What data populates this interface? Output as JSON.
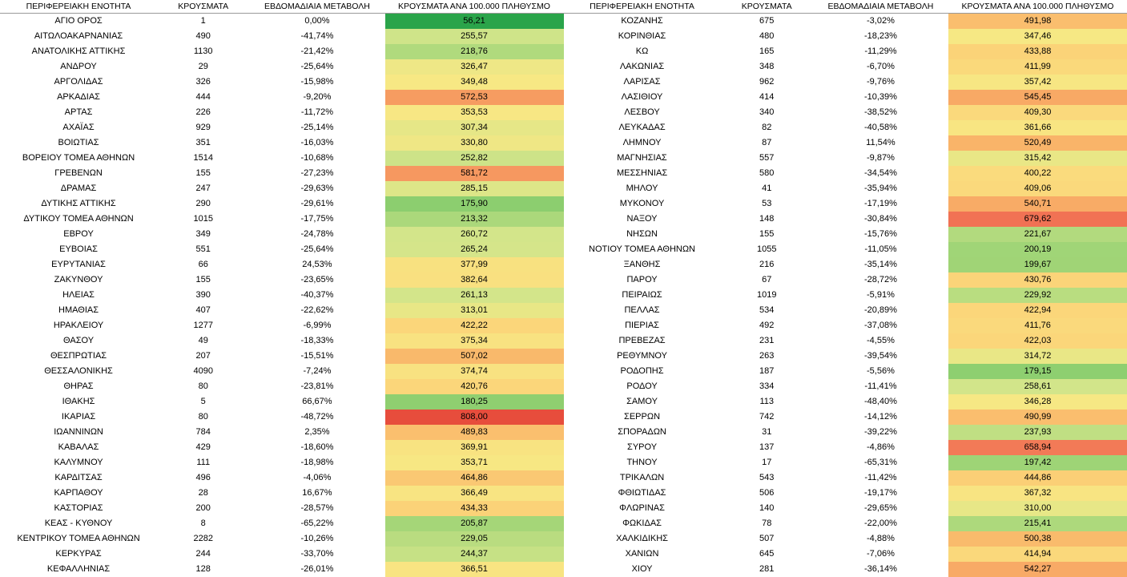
{
  "headers": {
    "region": "ΠΕΡΙΦΕΡΕΙΑΚΗ ΕΝΟΤΗΤΑ",
    "cases": "ΚΡΟΥΣΜΑΤΑ",
    "weekly_change": "ΕΒΔΟΜΑΔΙΑΙΑ ΜΕΤΑΒΟΛΗ",
    "per_100k": "ΚΡΟΥΣΜΑΤΑ ΑΝΑ 100.000 ΠΛΗΘΥΣΜΟ"
  },
  "color_scale": {
    "min": 56.21,
    "max": 808.0,
    "stops": [
      {
        "v": 56,
        "c": "#2aa44a"
      },
      {
        "v": 180,
        "c": "#8fcf70"
      },
      {
        "v": 260,
        "c": "#d3e58a"
      },
      {
        "v": 350,
        "c": "#f7e884"
      },
      {
        "v": 430,
        "c": "#fbd479"
      },
      {
        "v": 520,
        "c": "#f9b469"
      },
      {
        "v": 600,
        "c": "#f5905d"
      },
      {
        "v": 700,
        "c": "#f06a52"
      },
      {
        "v": 810,
        "c": "#e74c3c"
      }
    ]
  },
  "left": [
    {
      "region": "ΑΓΙΟ ΟΡΟΣ",
      "cases": 1,
      "change": "0,00%",
      "rate": "56,21",
      "rate_v": 56.21
    },
    {
      "region": "ΑΙΤΩΛΟΑΚΑΡΝΑΝΙΑΣ",
      "cases": 490,
      "change": "-41,74%",
      "rate": "255,57",
      "rate_v": 255.57
    },
    {
      "region": "ΑΝΑΤΟΛΙΚΗΣ ΑΤΤΙΚΗΣ",
      "cases": 1130,
      "change": "-21,42%",
      "rate": "218,76",
      "rate_v": 218.76
    },
    {
      "region": "ΑΝΔΡΟΥ",
      "cases": 29,
      "change": "-25,64%",
      "rate": "326,47",
      "rate_v": 326.47
    },
    {
      "region": "ΑΡΓΟΛΙΔΑΣ",
      "cases": 326,
      "change": "-15,98%",
      "rate": "349,48",
      "rate_v": 349.48
    },
    {
      "region": "ΑΡΚΑΔΙΑΣ",
      "cases": 444,
      "change": "-9,20%",
      "rate": "572,53",
      "rate_v": 572.53
    },
    {
      "region": "ΑΡΤΑΣ",
      "cases": 226,
      "change": "-11,72%",
      "rate": "353,53",
      "rate_v": 353.53
    },
    {
      "region": "ΑΧΑΪΑΣ",
      "cases": 929,
      "change": "-25,14%",
      "rate": "307,34",
      "rate_v": 307.34
    },
    {
      "region": "ΒΟΙΩΤΙΑΣ",
      "cases": 351,
      "change": "-16,03%",
      "rate": "330,80",
      "rate_v": 330.8
    },
    {
      "region": "ΒΟΡΕΙΟΥ ΤΟΜΕΑ ΑΘΗΝΩΝ",
      "cases": 1514,
      "change": "-10,68%",
      "rate": "252,82",
      "rate_v": 252.82
    },
    {
      "region": "ΓΡΕΒΕΝΩΝ",
      "cases": 155,
      "change": "-27,23%",
      "rate": "581,72",
      "rate_v": 581.72
    },
    {
      "region": "ΔΡΑΜΑΣ",
      "cases": 247,
      "change": "-29,63%",
      "rate": "285,15",
      "rate_v": 285.15
    },
    {
      "region": "ΔΥΤΙΚΗΣ ΑΤΤΙΚΗΣ",
      "cases": 290,
      "change": "-29,61%",
      "rate": "175,90",
      "rate_v": 175.9
    },
    {
      "region": "ΔΥΤΙΚΟΥ ΤΟΜΕΑ ΑΘΗΝΩΝ",
      "cases": 1015,
      "change": "-17,75%",
      "rate": "213,32",
      "rate_v": 213.32
    },
    {
      "region": "ΕΒΡΟΥ",
      "cases": 349,
      "change": "-24,78%",
      "rate": "260,72",
      "rate_v": 260.72
    },
    {
      "region": "ΕΥΒΟΙΑΣ",
      "cases": 551,
      "change": "-25,64%",
      "rate": "265,24",
      "rate_v": 265.24
    },
    {
      "region": "ΕΥΡΥΤΑΝΙΑΣ",
      "cases": 66,
      "change": "24,53%",
      "rate": "377,99",
      "rate_v": 377.99
    },
    {
      "region": "ΖΑΚΥΝΘΟΥ",
      "cases": 155,
      "change": "-23,65%",
      "rate": "382,64",
      "rate_v": 382.64
    },
    {
      "region": "ΗΛΕΙΑΣ",
      "cases": 390,
      "change": "-40,37%",
      "rate": "261,13",
      "rate_v": 261.13
    },
    {
      "region": "ΗΜΑΘΙΑΣ",
      "cases": 407,
      "change": "-22,62%",
      "rate": "313,01",
      "rate_v": 313.01
    },
    {
      "region": "ΗΡΑΚΛΕΙΟΥ",
      "cases": 1277,
      "change": "-6,99%",
      "rate": "422,22",
      "rate_v": 422.22
    },
    {
      "region": "ΘΑΣΟΥ",
      "cases": 49,
      "change": "-18,33%",
      "rate": "375,34",
      "rate_v": 375.34
    },
    {
      "region": "ΘΕΣΠΡΩΤΙΑΣ",
      "cases": 207,
      "change": "-15,51%",
      "rate": "507,02",
      "rate_v": 507.02
    },
    {
      "region": "ΘΕΣΣΑΛΟΝΙΚΗΣ",
      "cases": 4090,
      "change": "-7,24%",
      "rate": "374,74",
      "rate_v": 374.74
    },
    {
      "region": "ΘΗΡΑΣ",
      "cases": 80,
      "change": "-23,81%",
      "rate": "420,76",
      "rate_v": 420.76
    },
    {
      "region": "ΙΘΑΚΗΣ",
      "cases": 5,
      "change": "66,67%",
      "rate": "180,25",
      "rate_v": 180.25
    },
    {
      "region": "ΙΚΑΡΙΑΣ",
      "cases": 80,
      "change": "-48,72%",
      "rate": "808,00",
      "rate_v": 808.0
    },
    {
      "region": "ΙΩΑΝΝΙΝΩΝ",
      "cases": 784,
      "change": "2,35%",
      "rate": "489,83",
      "rate_v": 489.83
    },
    {
      "region": "ΚΑΒΑΛΑΣ",
      "cases": 429,
      "change": "-18,60%",
      "rate": "369,91",
      "rate_v": 369.91
    },
    {
      "region": "ΚΑΛΥΜΝΟΥ",
      "cases": 111,
      "change": "-18,98%",
      "rate": "353,71",
      "rate_v": 353.71
    },
    {
      "region": "ΚΑΡΔΙΤΣΑΣ",
      "cases": 496,
      "change": "-4,06%",
      "rate": "464,86",
      "rate_v": 464.86
    },
    {
      "region": "ΚΑΡΠΑΘΟΥ",
      "cases": 28,
      "change": "16,67%",
      "rate": "366,49",
      "rate_v": 366.49
    },
    {
      "region": "ΚΑΣΤΟΡΙΑΣ",
      "cases": 200,
      "change": "-28,57%",
      "rate": "434,33",
      "rate_v": 434.33
    },
    {
      "region": "ΚΕΑΣ - ΚΥΘΝΟΥ",
      "cases": 8,
      "change": "-65,22%",
      "rate": "205,87",
      "rate_v": 205.87
    },
    {
      "region": "ΚΕΝΤΡΙΚΟΥ ΤΟΜΕΑ ΑΘΗΝΩΝ",
      "cases": 2282,
      "change": "-10,26%",
      "rate": "229,05",
      "rate_v": 229.05
    },
    {
      "region": "ΚΕΡΚΥΡΑΣ",
      "cases": 244,
      "change": "-33,70%",
      "rate": "244,37",
      "rate_v": 244.37
    },
    {
      "region": "ΚΕΦΑΛΛΗΝΙΑΣ",
      "cases": 128,
      "change": "-26,01%",
      "rate": "366,51",
      "rate_v": 366.51
    }
  ],
  "right": [
    {
      "region": "ΚΟΖΑΝΗΣ",
      "cases": 675,
      "change": "-3,02%",
      "rate": "491,98",
      "rate_v": 491.98
    },
    {
      "region": "ΚΟΡΙΝΘΙΑΣ",
      "cases": 480,
      "change": "-18,23%",
      "rate": "347,46",
      "rate_v": 347.46
    },
    {
      "region": "ΚΩ",
      "cases": 165,
      "change": "-11,29%",
      "rate": "433,88",
      "rate_v": 433.88
    },
    {
      "region": "ΛΑΚΩΝΙΑΣ",
      "cases": 348,
      "change": "-6,70%",
      "rate": "411,99",
      "rate_v": 411.99
    },
    {
      "region": "ΛΑΡΙΣΑΣ",
      "cases": 962,
      "change": "-9,76%",
      "rate": "357,42",
      "rate_v": 357.42
    },
    {
      "region": "ΛΑΣΙΘΙΟΥ",
      "cases": 414,
      "change": "-10,39%",
      "rate": "545,45",
      "rate_v": 545.45
    },
    {
      "region": "ΛΕΣΒΟΥ",
      "cases": 340,
      "change": "-38,52%",
      "rate": "409,30",
      "rate_v": 409.3
    },
    {
      "region": "ΛΕΥΚΑΔΑΣ",
      "cases": 82,
      "change": "-40,58%",
      "rate": "361,66",
      "rate_v": 361.66
    },
    {
      "region": "ΛΗΜΝΟΥ",
      "cases": 87,
      "change": "11,54%",
      "rate": "520,49",
      "rate_v": 520.49
    },
    {
      "region": "ΜΑΓΝΗΣΙΑΣ",
      "cases": 557,
      "change": "-9,87%",
      "rate": "315,42",
      "rate_v": 315.42
    },
    {
      "region": "ΜΕΣΣΗΝΙΑΣ",
      "cases": 580,
      "change": "-34,54%",
      "rate": "400,22",
      "rate_v": 400.22
    },
    {
      "region": "ΜΗΛΟΥ",
      "cases": 41,
      "change": "-35,94%",
      "rate": "409,06",
      "rate_v": 409.06
    },
    {
      "region": "ΜΥΚΟΝΟΥ",
      "cases": 53,
      "change": "-17,19%",
      "rate": "540,71",
      "rate_v": 540.71
    },
    {
      "region": "ΝΑΞΟΥ",
      "cases": 148,
      "change": "-30,84%",
      "rate": "679,62",
      "rate_v": 679.62
    },
    {
      "region": "ΝΗΣΩΝ",
      "cases": 155,
      "change": "-15,76%",
      "rate": "221,67",
      "rate_v": 221.67
    },
    {
      "region": "ΝΟΤΙΟΥ ΤΟΜΕΑ ΑΘΗΝΩΝ",
      "cases": 1055,
      "change": "-11,05%",
      "rate": "200,19",
      "rate_v": 200.19
    },
    {
      "region": "ΞΑΝΘΗΣ",
      "cases": 216,
      "change": "-35,14%",
      "rate": "199,67",
      "rate_v": 199.67
    },
    {
      "region": "ΠΑΡΟΥ",
      "cases": 67,
      "change": "-28,72%",
      "rate": "430,76",
      "rate_v": 430.76
    },
    {
      "region": "ΠΕΙΡΑΙΩΣ",
      "cases": 1019,
      "change": "-5,91%",
      "rate": "229,92",
      "rate_v": 229.92
    },
    {
      "region": "ΠΕΛΛΑΣ",
      "cases": 534,
      "change": "-20,89%",
      "rate": "422,94",
      "rate_v": 422.94
    },
    {
      "region": "ΠΙΕΡΙΑΣ",
      "cases": 492,
      "change": "-37,08%",
      "rate": "411,76",
      "rate_v": 411.76
    },
    {
      "region": "ΠΡΕΒΕΖΑΣ",
      "cases": 231,
      "change": "-4,55%",
      "rate": "422,03",
      "rate_v": 422.03
    },
    {
      "region": "ΡΕΘΥΜΝΟΥ",
      "cases": 263,
      "change": "-39,54%",
      "rate": "314,72",
      "rate_v": 314.72
    },
    {
      "region": "ΡΟΔΟΠΗΣ",
      "cases": 187,
      "change": "-5,56%",
      "rate": "179,15",
      "rate_v": 179.15
    },
    {
      "region": "ΡΟΔΟΥ",
      "cases": 334,
      "change": "-11,41%",
      "rate": "258,61",
      "rate_v": 258.61
    },
    {
      "region": "ΣΑΜΟΥ",
      "cases": 113,
      "change": "-48,40%",
      "rate": "346,28",
      "rate_v": 346.28
    },
    {
      "region": "ΣΕΡΡΩΝ",
      "cases": 742,
      "change": "-14,12%",
      "rate": "490,99",
      "rate_v": 490.99
    },
    {
      "region": "ΣΠΟΡΑΔΩΝ",
      "cases": 31,
      "change": "-39,22%",
      "rate": "237,93",
      "rate_v": 237.93
    },
    {
      "region": "ΣΥΡΟΥ",
      "cases": 137,
      "change": "-4,86%",
      "rate": "658,94",
      "rate_v": 658.94
    },
    {
      "region": "ΤΗΝΟΥ",
      "cases": 17,
      "change": "-65,31%",
      "rate": "197,42",
      "rate_v": 197.42
    },
    {
      "region": "ΤΡΙΚΑΛΩΝ",
      "cases": 543,
      "change": "-11,42%",
      "rate": "444,86",
      "rate_v": 444.86
    },
    {
      "region": "ΦΘΙΩΤΙΔΑΣ",
      "cases": 506,
      "change": "-19,17%",
      "rate": "367,32",
      "rate_v": 367.32
    },
    {
      "region": "ΦΛΩΡΙΝΑΣ",
      "cases": 140,
      "change": "-29,65%",
      "rate": "310,00",
      "rate_v": 310.0
    },
    {
      "region": "ΦΩΚΙΔΑΣ",
      "cases": 78,
      "change": "-22,00%",
      "rate": "215,41",
      "rate_v": 215.41
    },
    {
      "region": "ΧΑΛΚΙΔΙΚΗΣ",
      "cases": 507,
      "change": "-4,88%",
      "rate": "500,38",
      "rate_v": 500.38
    },
    {
      "region": "ΧΑΝΙΩΝ",
      "cases": 645,
      "change": "-7,06%",
      "rate": "414,94",
      "rate_v": 414.94
    },
    {
      "region": "ΧΙΟΥ",
      "cases": 281,
      "change": "-36,14%",
      "rate": "542,27",
      "rate_v": 542.27
    }
  ]
}
